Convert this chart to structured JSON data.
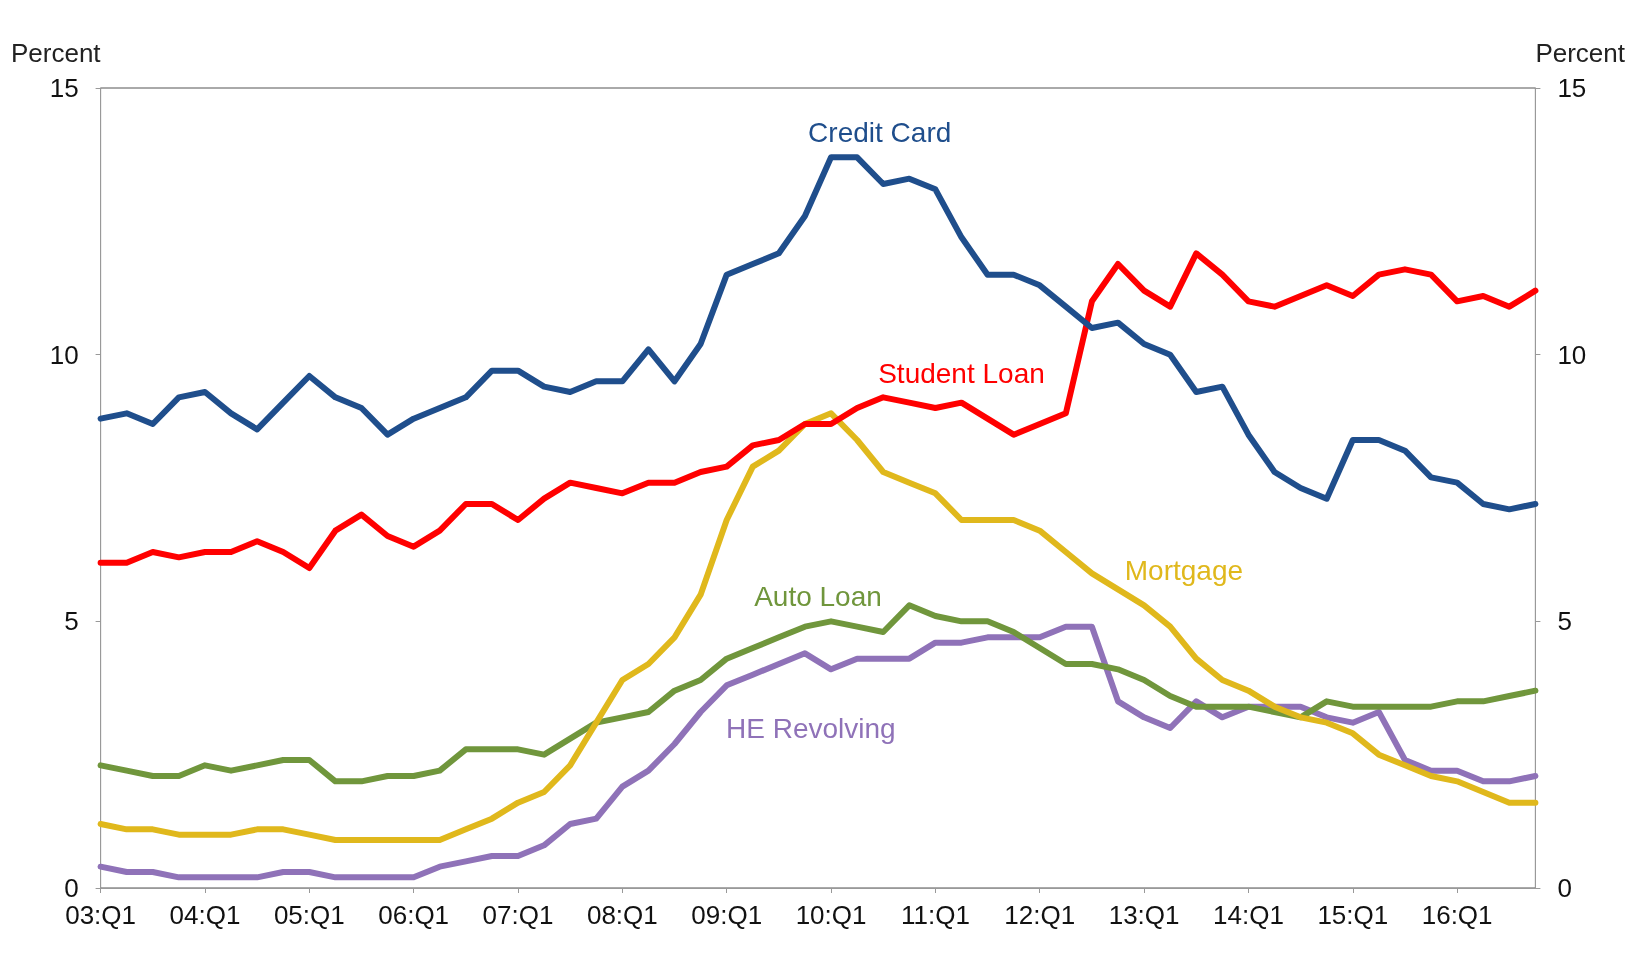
{
  "chart_data": {
    "type": "line",
    "ylabel": "Percent",
    "y2label": "Percent",
    "categories": [
      "03:Q1",
      null,
      null,
      null,
      "04:Q1",
      null,
      null,
      null,
      "05:Q1",
      null,
      null,
      null,
      "06:Q1",
      null,
      null,
      null,
      "07:Q1",
      null,
      null,
      null,
      "08:Q1",
      null,
      null,
      null,
      "09:Q1",
      null,
      null,
      null,
      "10:Q1",
      null,
      null,
      null,
      "11:Q1",
      null,
      null,
      null,
      "12:Q1",
      null,
      null,
      null,
      "13:Q1",
      null,
      null,
      null,
      "14:Q1",
      null,
      null,
      null,
      "15:Q1",
      null,
      null,
      null,
      "16:Q1",
      null,
      null,
      null
    ],
    "series": [
      {
        "name": "Credit Card",
        "color": "#1f4e8c",
        "values": [
          8.8,
          8.9,
          8.7,
          9.2,
          9.3,
          8.9,
          8.6,
          9.1,
          9.6,
          9.2,
          9.0,
          8.5,
          8.8,
          9.0,
          9.2,
          9.7,
          9.7,
          9.4,
          9.3,
          9.5,
          9.5,
          10.1,
          9.5,
          10.2,
          11.5,
          11.7,
          11.9,
          12.6,
          13.7,
          13.7,
          13.2,
          13.3,
          13.1,
          12.2,
          11.5,
          11.5,
          11.3,
          10.9,
          10.5,
          10.6,
          10.2,
          10.0,
          9.3,
          9.4,
          8.5,
          7.8,
          7.5,
          7.3,
          8.4,
          8.4,
          8.2,
          7.7,
          7.6,
          7.2,
          7.1,
          7.2
        ]
      },
      {
        "name": "Student Loan",
        "color": "#ff0000",
        "values": [
          6.1,
          6.1,
          6.3,
          6.2,
          6.3,
          6.3,
          6.5,
          6.3,
          6.0,
          6.7,
          7.0,
          6.6,
          6.4,
          6.7,
          7.2,
          7.2,
          6.9,
          7.3,
          7.6,
          7.5,
          7.4,
          7.6,
          7.6,
          7.8,
          7.9,
          8.3,
          8.4,
          8.7,
          8.7,
          9.0,
          9.2,
          9.1,
          9.0,
          9.1,
          8.8,
          8.5,
          8.7,
          8.9,
          11.0,
          11.7,
          11.2,
          10.9,
          11.9,
          11.5,
          11.0,
          10.9,
          11.1,
          11.3,
          11.1,
          11.5,
          11.6,
          11.5,
          11.0,
          11.1,
          10.9,
          11.2
        ]
      },
      {
        "name": "Mortgage",
        "color": "#e0b81c",
        "values": [
          1.2,
          1.1,
          1.1,
          1.0,
          1.0,
          1.0,
          1.1,
          1.1,
          1.0,
          0.9,
          0.9,
          0.9,
          0.9,
          0.9,
          1.1,
          1.3,
          1.6,
          1.8,
          2.3,
          3.1,
          3.9,
          4.2,
          4.7,
          5.5,
          6.9,
          7.9,
          8.2,
          8.7,
          8.9,
          8.4,
          7.8,
          7.6,
          7.4,
          6.9,
          6.9,
          6.9,
          6.7,
          6.3,
          5.9,
          5.6,
          5.3,
          4.9,
          4.3,
          3.9,
          3.7,
          3.4,
          3.2,
          3.1,
          2.9,
          2.5,
          2.3,
          2.1,
          2.0,
          1.8,
          1.6,
          1.6
        ]
      },
      {
        "name": "Auto Loan",
        "color": "#70963c",
        "values": [
          2.3,
          2.2,
          2.1,
          2.1,
          2.3,
          2.2,
          2.3,
          2.4,
          2.4,
          2.0,
          2.0,
          2.1,
          2.1,
          2.2,
          2.6,
          2.6,
          2.6,
          2.5,
          2.8,
          3.1,
          3.2,
          3.3,
          3.7,
          3.9,
          4.3,
          4.5,
          4.7,
          4.9,
          5.0,
          4.9,
          4.8,
          5.3,
          5.1,
          5.0,
          5.0,
          4.8,
          4.5,
          4.2,
          4.2,
          4.1,
          3.9,
          3.6,
          3.4,
          3.4,
          3.4,
          3.3,
          3.2,
          3.5,
          3.4,
          3.4,
          3.4,
          3.4,
          3.5,
          3.5,
          3.6,
          3.7
        ]
      },
      {
        "name": "HE Revolving",
        "color": "#8f72b8",
        "values": [
          0.4,
          0.3,
          0.3,
          0.2,
          0.2,
          0.2,
          0.2,
          0.3,
          0.3,
          0.2,
          0.2,
          0.2,
          0.2,
          0.4,
          0.5,
          0.6,
          0.6,
          0.8,
          1.2,
          1.3,
          1.9,
          2.2,
          2.7,
          3.3,
          3.8,
          4.0,
          4.2,
          4.4,
          4.1,
          4.3,
          4.3,
          4.3,
          4.6,
          4.6,
          4.7,
          4.7,
          4.7,
          4.9,
          4.9,
          3.5,
          3.2,
          3.0,
          3.5,
          3.2,
          3.4,
          3.4,
          3.4,
          3.2,
          3.1,
          3.3,
          2.4,
          2.2,
          2.2,
          2.0,
          2.0,
          2.1
        ]
      }
    ],
    "ylim": [
      0,
      15
    ],
    "yticks": [
      0,
      5,
      10,
      15
    ],
    "y2lim": [
      0,
      15
    ],
    "y2ticks": [
      0,
      5,
      10,
      15
    ],
    "grid": false,
    "legend": false,
    "marker": "none",
    "line_style": "solid"
  }
}
